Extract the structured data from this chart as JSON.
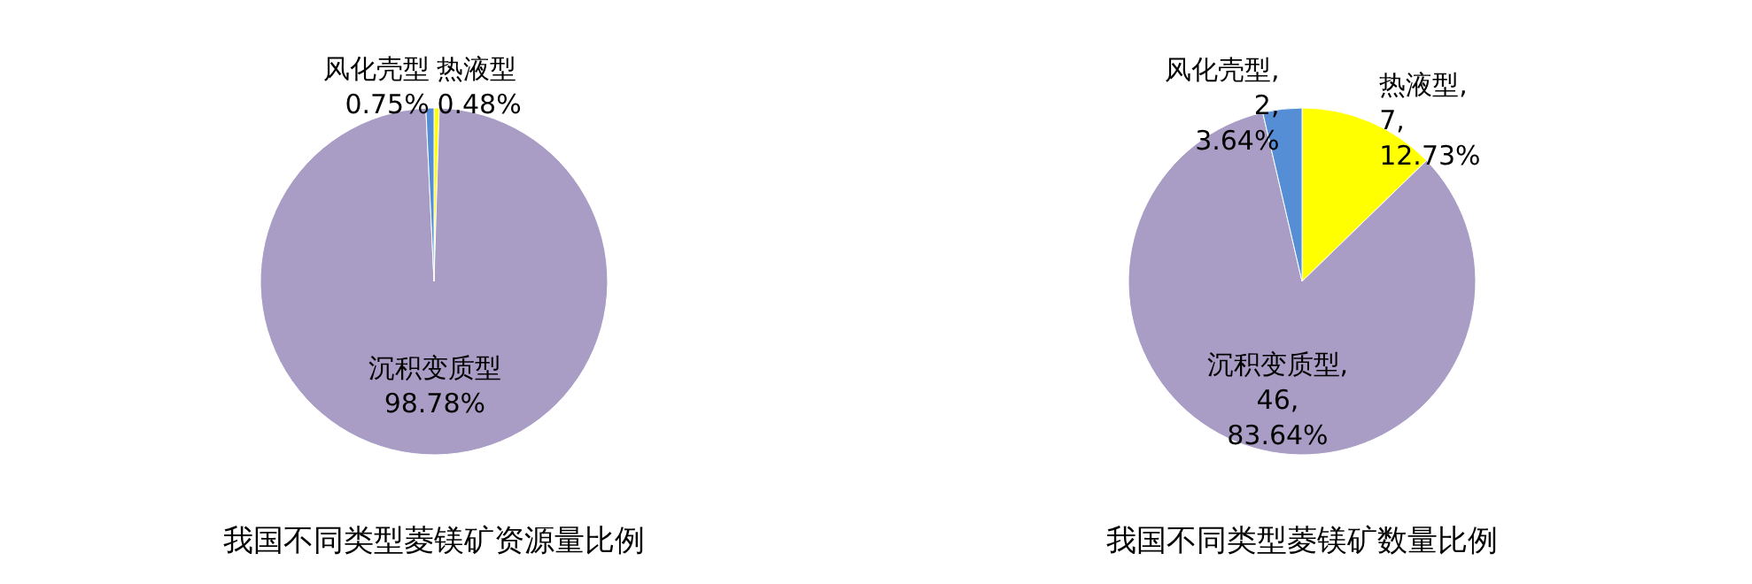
{
  "chart_data": [
    {
      "type": "pie",
      "title": "我国不同类型菱镁矿资源量比例",
      "categories": [
        "热液型",
        "沉积变质型",
        "风化壳型"
      ],
      "values": [
        0.48,
        98.78,
        0.75
      ],
      "colors": [
        "#ffff00",
        "#a99dc6",
        "#558ed5"
      ],
      "value_labels": [
        "0.48%",
        "98.78%",
        "0.75%"
      ],
      "legend": false
    },
    {
      "type": "pie",
      "title": "我国不同类型菱镁矿数量比例",
      "categories": [
        "热液型",
        "沉积变质型",
        "风化壳型"
      ],
      "values": [
        7,
        46,
        2
      ],
      "colors": [
        "#ffff00",
        "#a99dc6",
        "#558ed5"
      ],
      "value_labels": [
        ", 7, 12.73%",
        ", 46, 83.64%",
        ", 2, 3.64%"
      ],
      "legend": false
    }
  ]
}
